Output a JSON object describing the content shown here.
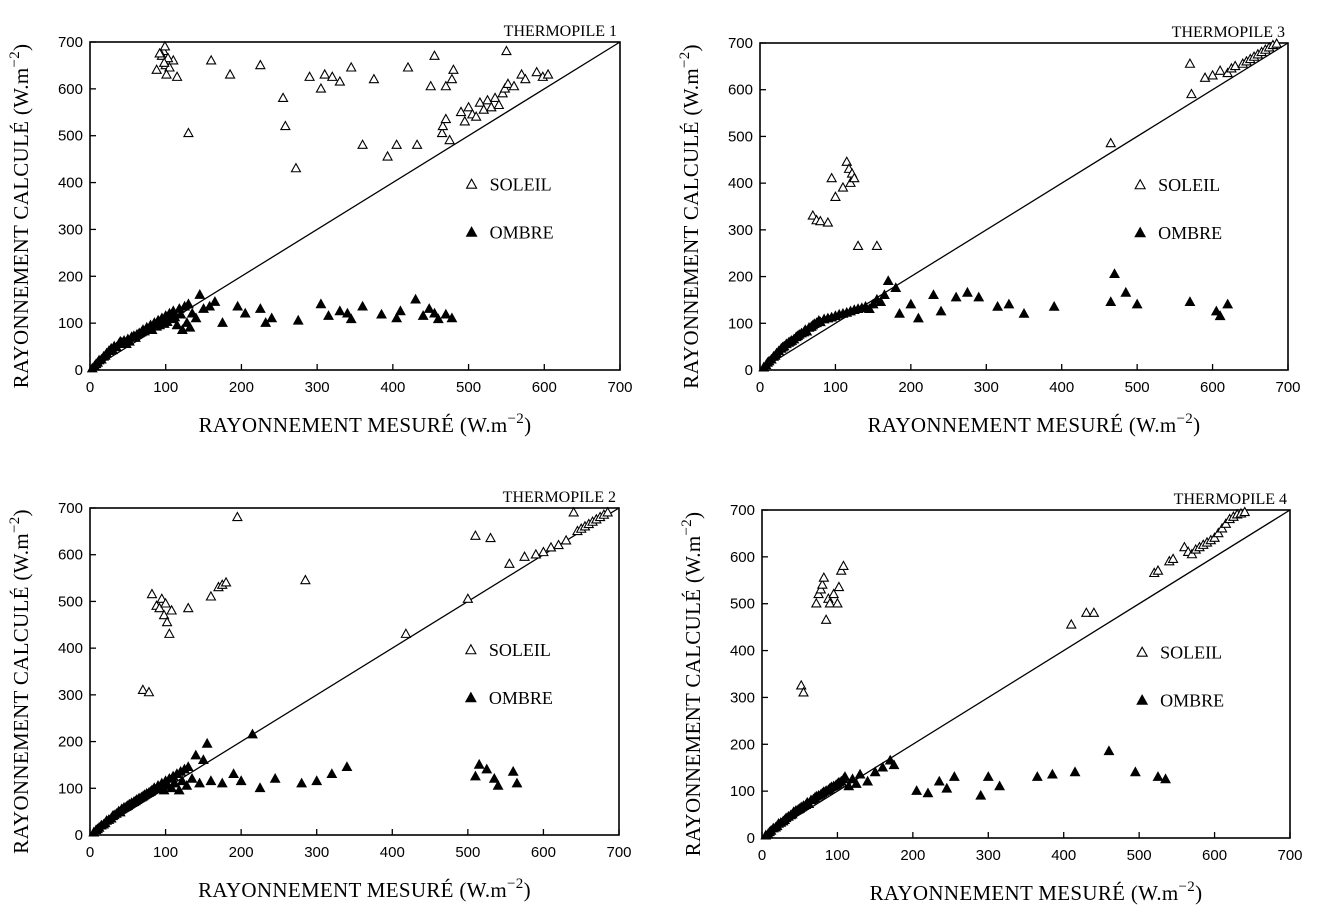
{
  "colors": {
    "ink": "#000000",
    "background": "#ffffff"
  },
  "chart_data": [
    {
      "type": "scatter",
      "title": "THERMOPILE 1",
      "xlabel": "RAYONNEMENT MESURÉ",
      "xunit": "(W.m",
      "ylabel": "RAYONNEMENT CALCULÉ",
      "yunit": "(W.m",
      "unit_exponent": "−2",
      "xlim": [
        0,
        700
      ],
      "ylim": [
        0,
        700
      ],
      "xticks": [
        0,
        100,
        200,
        300,
        400,
        500,
        600,
        700
      ],
      "yticks": [
        0,
        100,
        200,
        300,
        400,
        500,
        600,
        700
      ],
      "reference_line": [
        [
          0,
          0
        ],
        [
          700,
          700
        ]
      ],
      "legend_position": "center-right",
      "series": [
        {
          "name": "SOLEIL",
          "marker": "open-triangle",
          "x": [
            97,
            100,
            95,
            105,
            92,
            110,
            88,
            101,
            103,
            99,
            115,
            98,
            130,
            160,
            185,
            225,
            255,
            258,
            272,
            290,
            305,
            310,
            320,
            330,
            345,
            360,
            375,
            393,
            405,
            420,
            432,
            450,
            465,
            466,
            470,
            475,
            478,
            480,
            490,
            495,
            500,
            505,
            510,
            515,
            520,
            525,
            530,
            535,
            540,
            545,
            548,
            552,
            560,
            570,
            575,
            590,
            598,
            605,
            550,
            455,
            470
          ],
          "y": [
            680,
            650,
            670,
            645,
            675,
            660,
            640,
            630,
            665,
            690,
            625,
            655,
            505,
            660,
            630,
            650,
            580,
            520,
            430,
            625,
            600,
            630,
            625,
            615,
            645,
            480,
            620,
            455,
            480,
            645,
            480,
            605,
            505,
            520,
            535,
            490,
            620,
            640,
            550,
            530,
            560,
            545,
            540,
            570,
            555,
            575,
            560,
            580,
            565,
            590,
            600,
            610,
            605,
            630,
            620,
            635,
            625,
            630,
            680,
            670,
            605
          ]
        },
        {
          "name": "OMBRE",
          "marker": "filled-triangle",
          "x": [
            3,
            6,
            8,
            10,
            12,
            15,
            18,
            20,
            22,
            25,
            28,
            30,
            32,
            35,
            38,
            40,
            42,
            45,
            48,
            50,
            52,
            55,
            58,
            60,
            62,
            65,
            68,
            70,
            72,
            75,
            78,
            80,
            82,
            85,
            88,
            90,
            92,
            95,
            98,
            100,
            102,
            105,
            108,
            110,
            112,
            115,
            118,
            120,
            122,
            125,
            128,
            130,
            132,
            135,
            140,
            145,
            150,
            158,
            165,
            175,
            195,
            205,
            225,
            232,
            240,
            275,
            305,
            315,
            330,
            340,
            345,
            360,
            385,
            405,
            410,
            430,
            440,
            448,
            455,
            460,
            470,
            478
          ],
          "y": [
            3,
            8,
            12,
            15,
            20,
            22,
            28,
            30,
            35,
            40,
            45,
            42,
            50,
            48,
            55,
            60,
            58,
            62,
            55,
            65,
            60,
            70,
            72,
            68,
            75,
            78,
            80,
            85,
            82,
            90,
            88,
            95,
            85,
            100,
            92,
            105,
            95,
            110,
            98,
            115,
            102,
            120,
            108,
            125,
            112,
            95,
            130,
            118,
            85,
            135,
            100,
            140,
            90,
            120,
            110,
            160,
            130,
            135,
            145,
            100,
            135,
            120,
            130,
            100,
            110,
            105,
            140,
            115,
            125,
            120,
            108,
            135,
            118,
            110,
            125,
            150,
            115,
            130,
            120,
            108,
            118,
            110
          ]
        }
      ]
    },
    {
      "type": "scatter",
      "title": "THERMOPILE 3",
      "xlabel": "RAYONNEMENT MESURÉ",
      "xunit": "(W.m",
      "ylabel": "RAYONNEMENT CALCULÉ",
      "yunit": "(W.m",
      "unit_exponent": "−2",
      "xlim": [
        0,
        700
      ],
      "ylim": [
        0,
        700
      ],
      "xticks": [
        0,
        100,
        200,
        300,
        400,
        500,
        600,
        700
      ],
      "yticks": [
        0,
        100,
        200,
        300,
        400,
        500,
        600,
        700
      ],
      "reference_line": [
        [
          0,
          0
        ],
        [
          700,
          700
        ]
      ],
      "legend_position": "center-right",
      "series": [
        {
          "name": "SOLEIL",
          "marker": "open-triangle",
          "x": [
            70,
            75,
            80,
            90,
            95,
            100,
            110,
            115,
            118,
            120,
            122,
            125,
            130,
            155,
            465,
            570,
            572,
            590,
            600,
            610,
            620,
            625,
            630,
            640,
            645,
            650,
            655,
            660,
            665,
            670,
            675,
            680,
            685
          ],
          "y": [
            330,
            320,
            318,
            315,
            410,
            370,
            390,
            445,
            430,
            400,
            420,
            410,
            265,
            265,
            485,
            655,
            590,
            625,
            630,
            640,
            635,
            645,
            650,
            655,
            660,
            665,
            670,
            675,
            680,
            685,
            690,
            695,
            698
          ],
          "cluster_note": ""
        },
        {
          "name": "OMBRE",
          "marker": "filled-triangle",
          "x": [
            5,
            8,
            10,
            12,
            15,
            18,
            20,
            22,
            25,
            28,
            30,
            32,
            35,
            38,
            40,
            42,
            45,
            48,
            50,
            52,
            55,
            58,
            60,
            62,
            65,
            68,
            70,
            72,
            75,
            78,
            80,
            85,
            90,
            95,
            100,
            105,
            110,
            115,
            120,
            125,
            130,
            135,
            140,
            145,
            150,
            155,
            160,
            165,
            170,
            180,
            185,
            200,
            210,
            230,
            240,
            260,
            275,
            290,
            315,
            330,
            350,
            390,
            465,
            470,
            485,
            500,
            570,
            605,
            610,
            620
          ],
          "y": [
            5,
            10,
            15,
            18,
            22,
            28,
            30,
            35,
            40,
            45,
            48,
            50,
            55,
            58,
            60,
            62,
            65,
            70,
            72,
            75,
            78,
            80,
            85,
            82,
            90,
            92,
            95,
            98,
            100,
            105,
            102,
            108,
            110,
            112,
            115,
            118,
            120,
            122,
            125,
            128,
            130,
            132,
            135,
            130,
            140,
            150,
            145,
            160,
            190,
            175,
            120,
            140,
            110,
            160,
            125,
            155,
            165,
            155,
            135,
            140,
            120,
            135,
            145,
            205,
            165,
            140,
            145,
            125,
            115,
            140
          ]
        }
      ]
    },
    {
      "type": "scatter",
      "title": "THERMOPILE 2",
      "xlabel": "RAYONNEMENT MESURÉ",
      "xunit": "(W.m",
      "ylabel": "RAYONNEMENT CALCULÉ",
      "yunit": "(W.m",
      "unit_exponent": "−2",
      "xlim": [
        0,
        700
      ],
      "ylim": [
        0,
        700
      ],
      "xticks": [
        0,
        100,
        200,
        300,
        400,
        500,
        600,
        700
      ],
      "yticks": [
        0,
        100,
        200,
        300,
        400,
        500,
        600,
        700
      ],
      "reference_line": [
        [
          0,
          0
        ],
        [
          700,
          700
        ]
      ],
      "legend_position": "center-right",
      "series": [
        {
          "name": "SOLEIL",
          "marker": "open-triangle",
          "x": [
            70,
            78,
            82,
            88,
            92,
            95,
            98,
            100,
            102,
            105,
            108,
            130,
            160,
            170,
            175,
            180,
            195,
            285,
            418,
            500,
            510,
            530,
            555,
            575,
            590,
            600,
            610,
            620,
            630,
            640,
            645,
            650,
            655,
            660,
            665,
            670,
            675,
            680,
            685
          ],
          "y": [
            310,
            305,
            515,
            490,
            485,
            505,
            470,
            495,
            455,
            430,
            480,
            485,
            510,
            530,
            535,
            540,
            680,
            545,
            430,
            505,
            640,
            635,
            580,
            595,
            600,
            605,
            615,
            620,
            630,
            690,
            650,
            655,
            660,
            665,
            670,
            675,
            680,
            685,
            690
          ]
        },
        {
          "name": "OMBRE",
          "marker": "filled-triangle",
          "x": [
            5,
            8,
            10,
            12,
            15,
            18,
            20,
            22,
            25,
            28,
            30,
            32,
            35,
            38,
            40,
            42,
            45,
            48,
            50,
            52,
            55,
            58,
            60,
            62,
            65,
            68,
            70,
            72,
            75,
            78,
            80,
            82,
            85,
            88,
            90,
            92,
            95,
            98,
            100,
            102,
            105,
            108,
            110,
            112,
            115,
            118,
            120,
            122,
            125,
            128,
            130,
            135,
            140,
            145,
            150,
            155,
            160,
            175,
            190,
            200,
            215,
            225,
            245,
            280,
            300,
            320,
            340,
            510,
            515,
            525,
            535,
            540,
            560,
            565
          ],
          "y": [
            5,
            10,
            12,
            15,
            20,
            22,
            25,
            30,
            32,
            35,
            40,
            42,
            45,
            50,
            48,
            55,
            58,
            60,
            62,
            65,
            68,
            70,
            72,
            75,
            78,
            80,
            82,
            85,
            88,
            90,
            92,
            95,
            100,
            98,
            105,
            100,
            110,
            95,
            115,
            105,
            120,
            100,
            125,
            110,
            130,
            95,
            135,
            115,
            140,
            105,
            145,
            120,
            170,
            110,
            160,
            195,
            115,
            110,
            130,
            115,
            215,
            100,
            120,
            110,
            115,
            130,
            145,
            125,
            150,
            140,
            120,
            105,
            135,
            110
          ]
        }
      ]
    },
    {
      "type": "scatter",
      "title": "THERMOPILE 4",
      "xlabel": "RAYONNEMENT MESURÉ",
      "xunit": "(W.m",
      "ylabel": "RAYONNEMENT CALCULÉ",
      "yunit": "(W.m",
      "unit_exponent": "−2",
      "xlim": [
        0,
        700
      ],
      "ylim": [
        0,
        700
      ],
      "xticks": [
        0,
        100,
        200,
        300,
        400,
        500,
        600,
        700
      ],
      "yticks": [
        0,
        100,
        200,
        300,
        400,
        500,
        600,
        700
      ],
      "reference_line": [
        [
          0,
          0
        ],
        [
          700,
          700
        ]
      ],
      "legend_position": "center-right",
      "series": [
        {
          "name": "SOLEIL",
          "marker": "open-triangle",
          "x": [
            52,
            55,
            72,
            75,
            78,
            80,
            82,
            85,
            88,
            90,
            95,
            100,
            102,
            105,
            108,
            410,
            430,
            440,
            520,
            525,
            540,
            545,
            560,
            565,
            570,
            575,
            580,
            585,
            590,
            595,
            600,
            605,
            610,
            615,
            620,
            625,
            630,
            635,
            640
          ],
          "y": [
            325,
            310,
            500,
            520,
            530,
            540,
            555,
            465,
            510,
            500,
            520,
            500,
            535,
            570,
            580,
            455,
            480,
            480,
            565,
            570,
            590,
            595,
            620,
            610,
            605,
            615,
            620,
            625,
            630,
            635,
            640,
            650,
            660,
            670,
            680,
            685,
            690,
            692,
            695
          ]
        },
        {
          "name": "OMBRE",
          "marker": "filled-triangle",
          "x": [
            5,
            8,
            10,
            12,
            15,
            18,
            20,
            22,
            25,
            28,
            30,
            32,
            35,
            38,
            40,
            42,
            45,
            48,
            50,
            52,
            55,
            58,
            60,
            62,
            65,
            68,
            70,
            72,
            75,
            78,
            80,
            82,
            85,
            88,
            90,
            92,
            95,
            98,
            100,
            102,
            105,
            108,
            110,
            115,
            120,
            125,
            130,
            140,
            150,
            160,
            170,
            175,
            205,
            220,
            235,
            245,
            255,
            290,
            300,
            315,
            365,
            385,
            415,
            460,
            495,
            525,
            535
          ],
          "y": [
            5,
            8,
            12,
            15,
            20,
            22,
            25,
            30,
            32,
            35,
            38,
            42,
            45,
            48,
            50,
            55,
            58,
            60,
            62,
            65,
            68,
            70,
            75,
            72,
            80,
            82,
            85,
            88,
            90,
            92,
            95,
            98,
            100,
            102,
            105,
            108,
            110,
            112,
            115,
            118,
            120,
            125,
            130,
            110,
            125,
            115,
            135,
            120,
            140,
            150,
            165,
            155,
            100,
            95,
            120,
            105,
            130,
            90,
            130,
            110,
            130,
            135,
            140,
            185,
            140,
            130,
            125
          ]
        }
      ]
    }
  ]
}
